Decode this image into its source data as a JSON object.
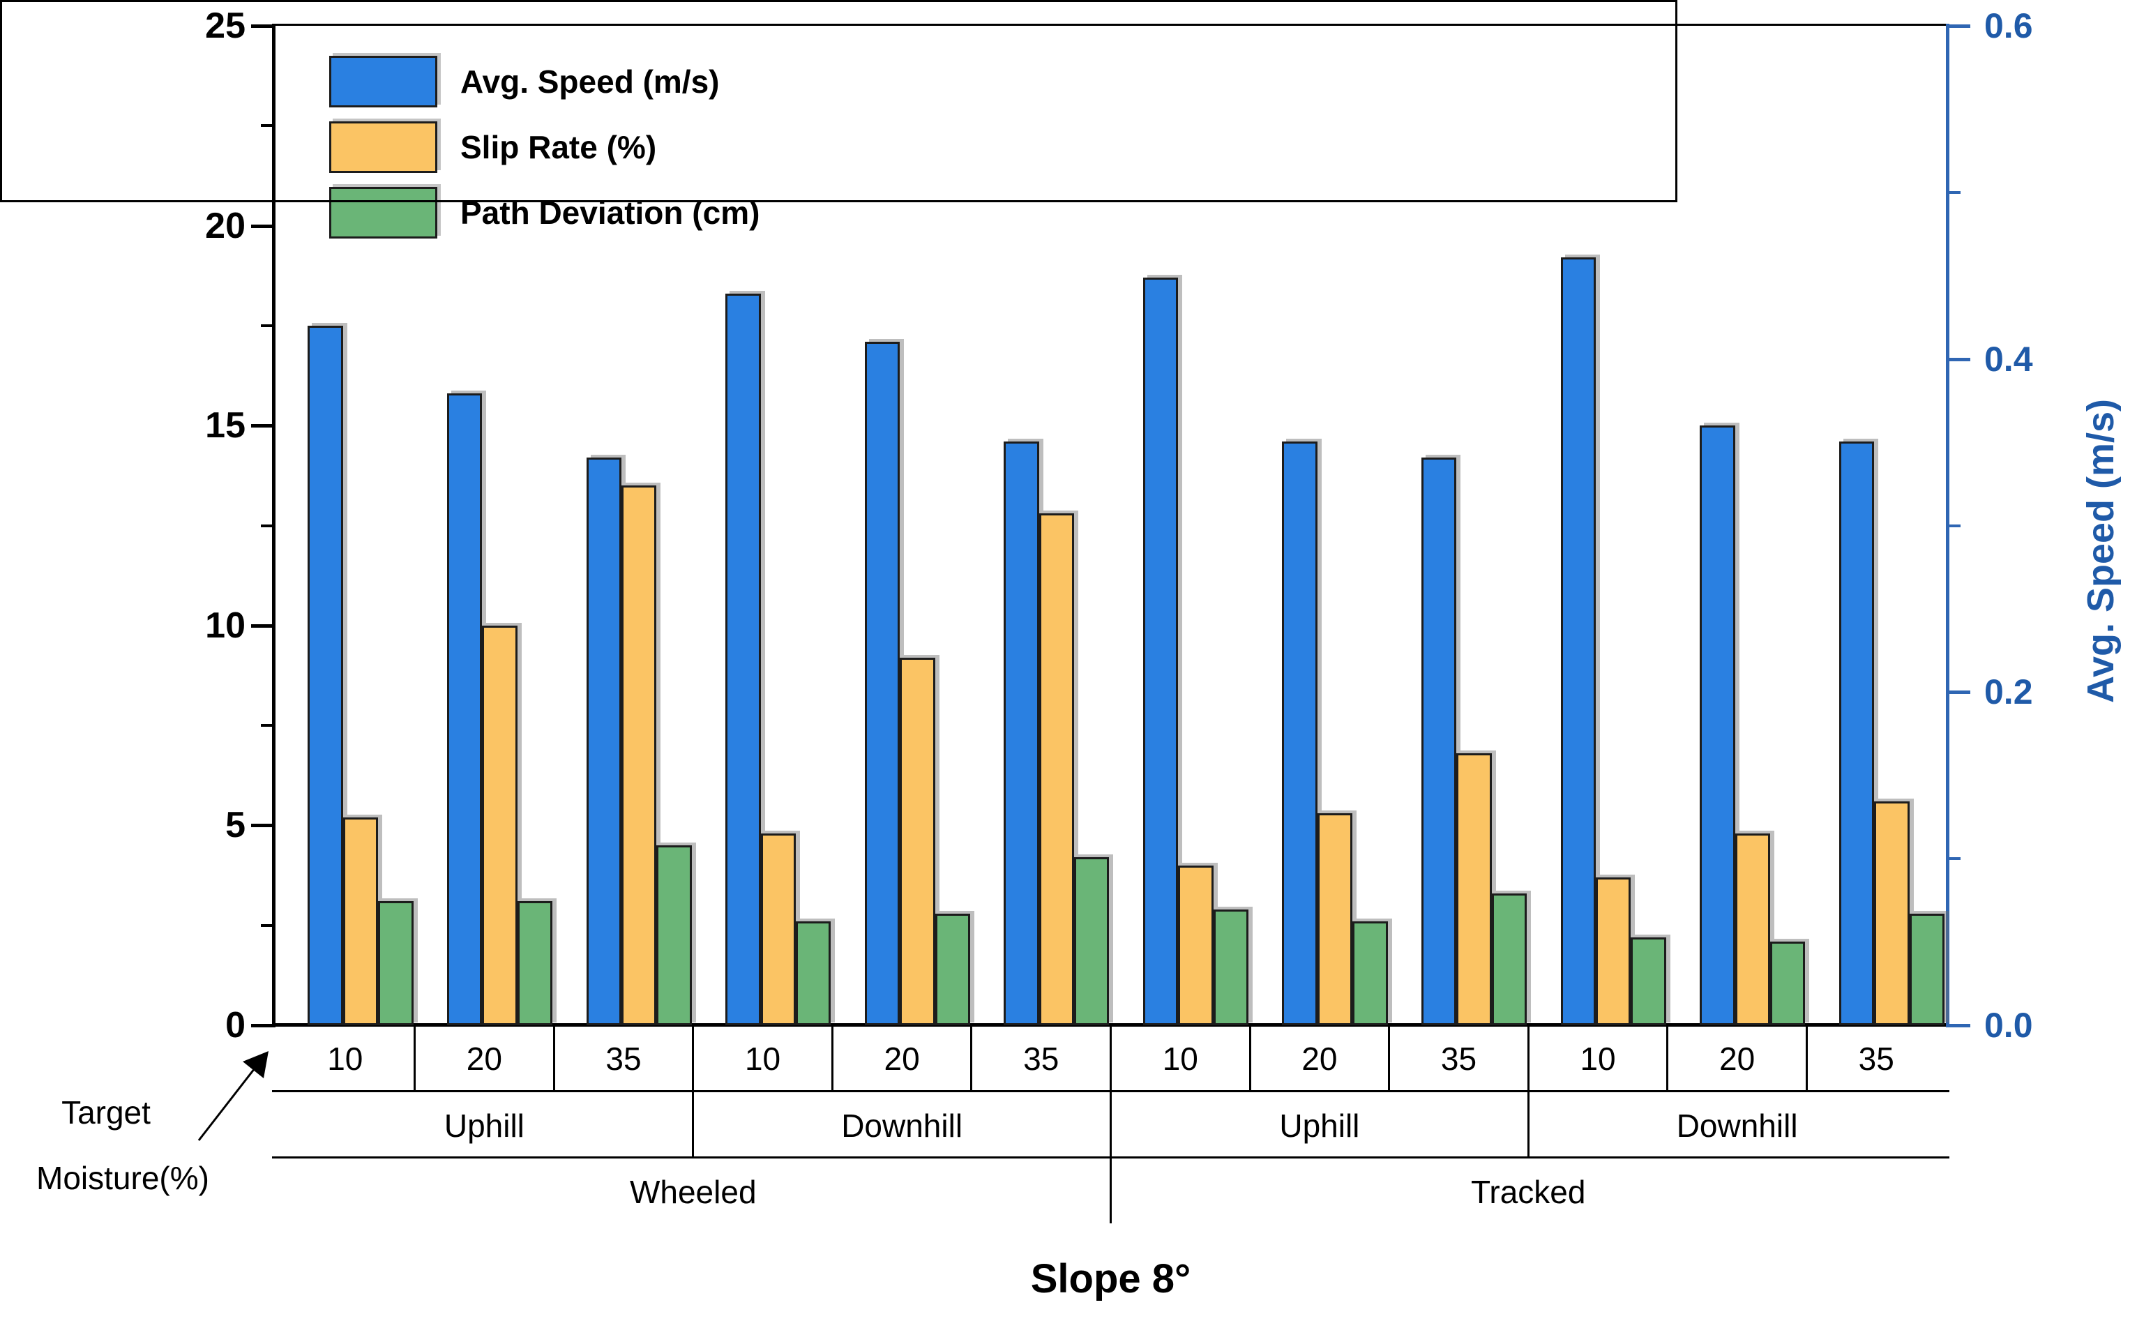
{
  "title": "Slope 8°",
  "left_axis": {
    "tick_labels": [
      "0",
      "5",
      "10",
      "15",
      "20",
      "25"
    ],
    "tick_values": [
      0,
      5,
      10,
      15,
      20,
      25
    ],
    "minor_tick_values": [
      2.5,
      7.5,
      12.5,
      17.5,
      22.5
    ],
    "range": [
      0,
      25
    ]
  },
  "right_axis": {
    "title": "Avg. Speed (m/s)",
    "tick_labels": [
      "0.0",
      "0.2",
      "0.4",
      "0.6"
    ],
    "tick_values": [
      0.0,
      0.2,
      0.4,
      0.6
    ],
    "minor_tick_values": [
      0.1,
      0.3,
      0.5
    ],
    "range": [
      0.0,
      0.6
    ],
    "color": "#1f5aa8"
  },
  "legend": [
    {
      "label": "Avg. Speed (m/s)",
      "color": "#2a80e1"
    },
    {
      "label": "Slip Rate (%)",
      "color": "#fbc464"
    },
    {
      "label": "Path Deviation (cm)",
      "color": "#6ab577"
    }
  ],
  "annotation": {
    "line1": "Target",
    "line2": "Moisture(%)"
  },
  "chart_data": {
    "type": "bar",
    "title": "Slope 8°",
    "grid": false,
    "legend_position": "top-left-inside",
    "left_ylim": [
      0,
      25
    ],
    "right_ylim": [
      0.0,
      0.6
    ],
    "x_hierarchy": {
      "moisture_row": [
        "10",
        "20",
        "35",
        "10",
        "20",
        "35",
        "10",
        "20",
        "35",
        "10",
        "20",
        "35"
      ],
      "direction_row": [
        {
          "label": "Uphill",
          "span": 3
        },
        {
          "label": "Downhill",
          "span": 3
        },
        {
          "label": "Uphill",
          "span": 3
        },
        {
          "label": "Downhill",
          "span": 3
        }
      ],
      "vehicle_row": [
        {
          "label": "Wheeled",
          "span": 6
        },
        {
          "label": "Tracked",
          "span": 6
        }
      ]
    },
    "series": [
      {
        "name": "Avg. Speed (m/s)",
        "axis": "right",
        "color": "#2a80e1",
        "values_left_axis_units": [
          17.5,
          15.8,
          14.2,
          18.3,
          17.1,
          14.6,
          18.7,
          14.6,
          14.2,
          19.2,
          15.0,
          14.6
        ],
        "values_m_per_s": [
          0.42,
          0.38,
          0.34,
          0.44,
          0.41,
          0.35,
          0.45,
          0.35,
          0.34,
          0.46,
          0.36,
          0.35
        ]
      },
      {
        "name": "Slip Rate (%)",
        "axis": "left",
        "color": "#fbc464",
        "values": [
          5.2,
          10.0,
          13.5,
          4.8,
          9.2,
          12.8,
          4.0,
          5.3,
          6.8,
          3.7,
          4.8,
          5.6
        ]
      },
      {
        "name": "Path Deviation (cm)",
        "axis": "left",
        "color": "#6ab577",
        "values": [
          3.1,
          3.1,
          4.5,
          2.6,
          2.8,
          4.2,
          2.9,
          2.6,
          3.3,
          2.2,
          2.1,
          2.8
        ]
      }
    ]
  }
}
